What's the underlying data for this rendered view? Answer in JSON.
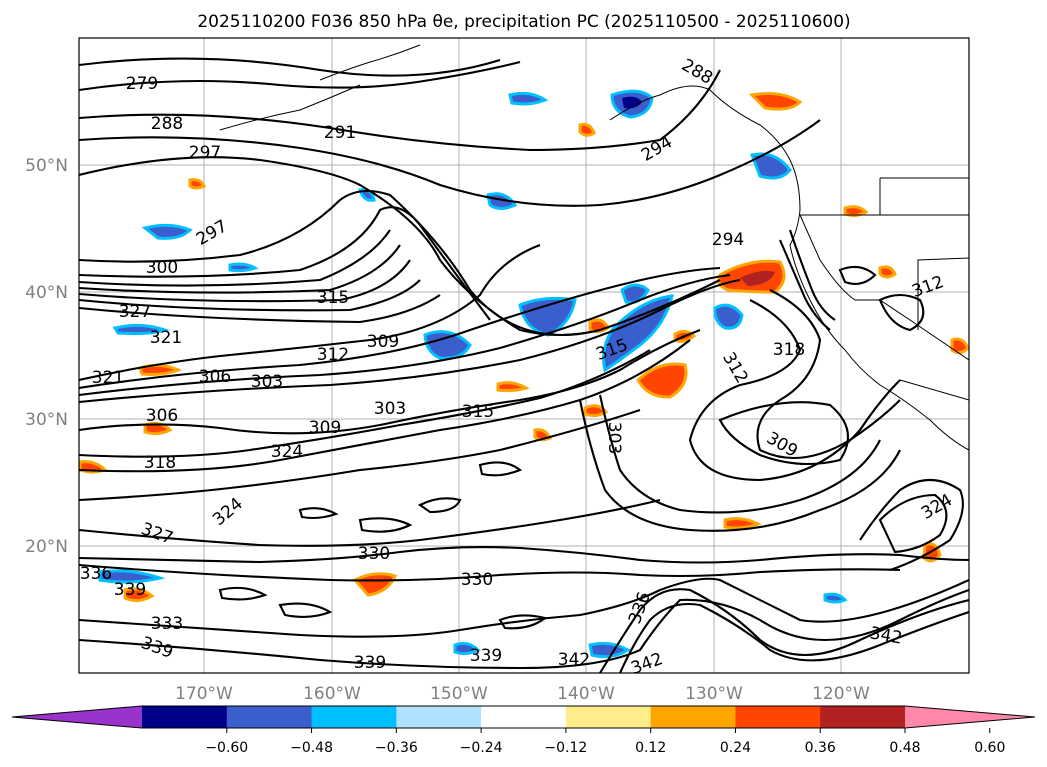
{
  "title": "2025110200 F036 850 hPa θe, precipitation PC (2025110500 - 2025110600)",
  "lat_ticks": [
    "50°N",
    "40°N",
    "30°N",
    "20°N"
  ],
  "lon_ticks": [
    "170°W",
    "160°W",
    "150°W",
    "140°W",
    "130°W",
    "120°W"
  ],
  "colorbar": {
    "ticks": [
      "−0.60",
      "−0.48",
      "−0.36",
      "−0.24",
      "−0.12",
      "0.12",
      "0.24",
      "0.36",
      "0.48",
      "0.60"
    ],
    "colors": [
      "#9933cc",
      "#00008b",
      "#3a5fcd",
      "#00bfff",
      "#b0e2ff",
      "#ffffff",
      "#ffec8b",
      "#ffa500",
      "#ff4500",
      "#b22222",
      "#ff88aa"
    ]
  },
  "contour_labels": [
    "279",
    "288",
    "291",
    "297",
    "288",
    "294",
    "297",
    "300",
    "294",
    "315",
    "327",
    "321",
    "306",
    "303",
    "312",
    "309",
    "303",
    "306",
    "309",
    "315",
    "318",
    "324",
    "321",
    "318",
    "312",
    "309",
    "324",
    "327",
    "330",
    "330",
    "336",
    "339",
    "333",
    "339",
    "339",
    "339",
    "342",
    "342",
    "336",
    "342",
    "324",
    "312",
    "303",
    "315"
  ]
}
